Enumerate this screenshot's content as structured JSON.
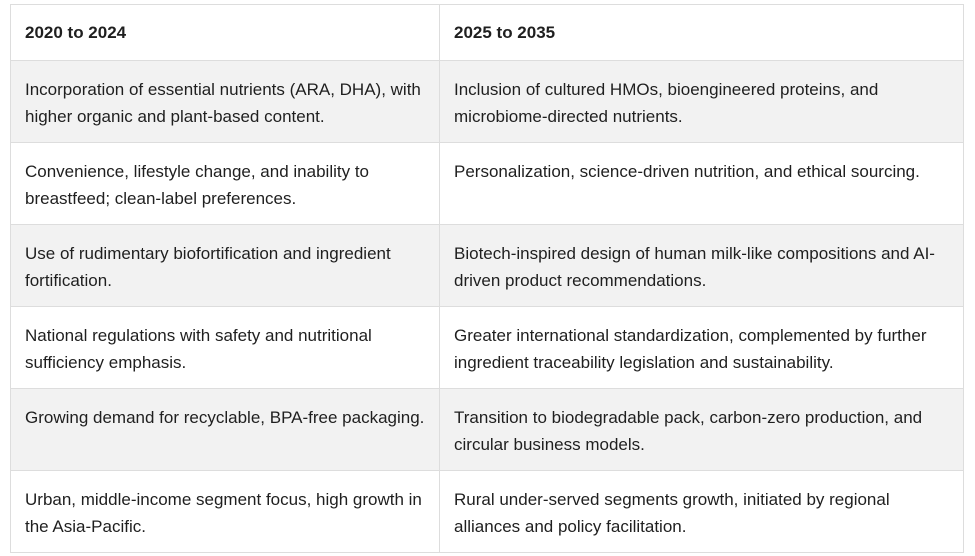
{
  "table": {
    "headers": [
      "2020 to 2024",
      "2025 to 2035"
    ],
    "rows": [
      [
        "Incorporation of essential nutrients (ARA, DHA), with higher organic and plant-based content.",
        "Inclusion of cultured HMOs, bioengineered proteins, and microbiome-directed nutrients."
      ],
      [
        "Convenience, lifestyle change, and inability to breastfeed; clean-label preferences.",
        "Personalization, science-driven nutrition, and ethical sourcing."
      ],
      [
        "Use of rudimentary biofortification and ingredient fortification.",
        "Biotech-inspired design of human milk-like compositions and AI-driven product recommendations."
      ],
      [
        "National regulations with safety and nutritional sufficiency emphasis.",
        "Greater international standardization, complemented by further ingredient traceability legislation and sustainability."
      ],
      [
        "Growing demand for recyclable, BPA-free packaging.",
        "Transition to biodegradable pack, carbon-zero production, and circular business models."
      ],
      [
        "Urban, middle-income segment focus, high growth in the Asia-Pacific.",
        "Rural under-served segments growth, initiated by regional alliances and policy facilitation."
      ]
    ]
  }
}
